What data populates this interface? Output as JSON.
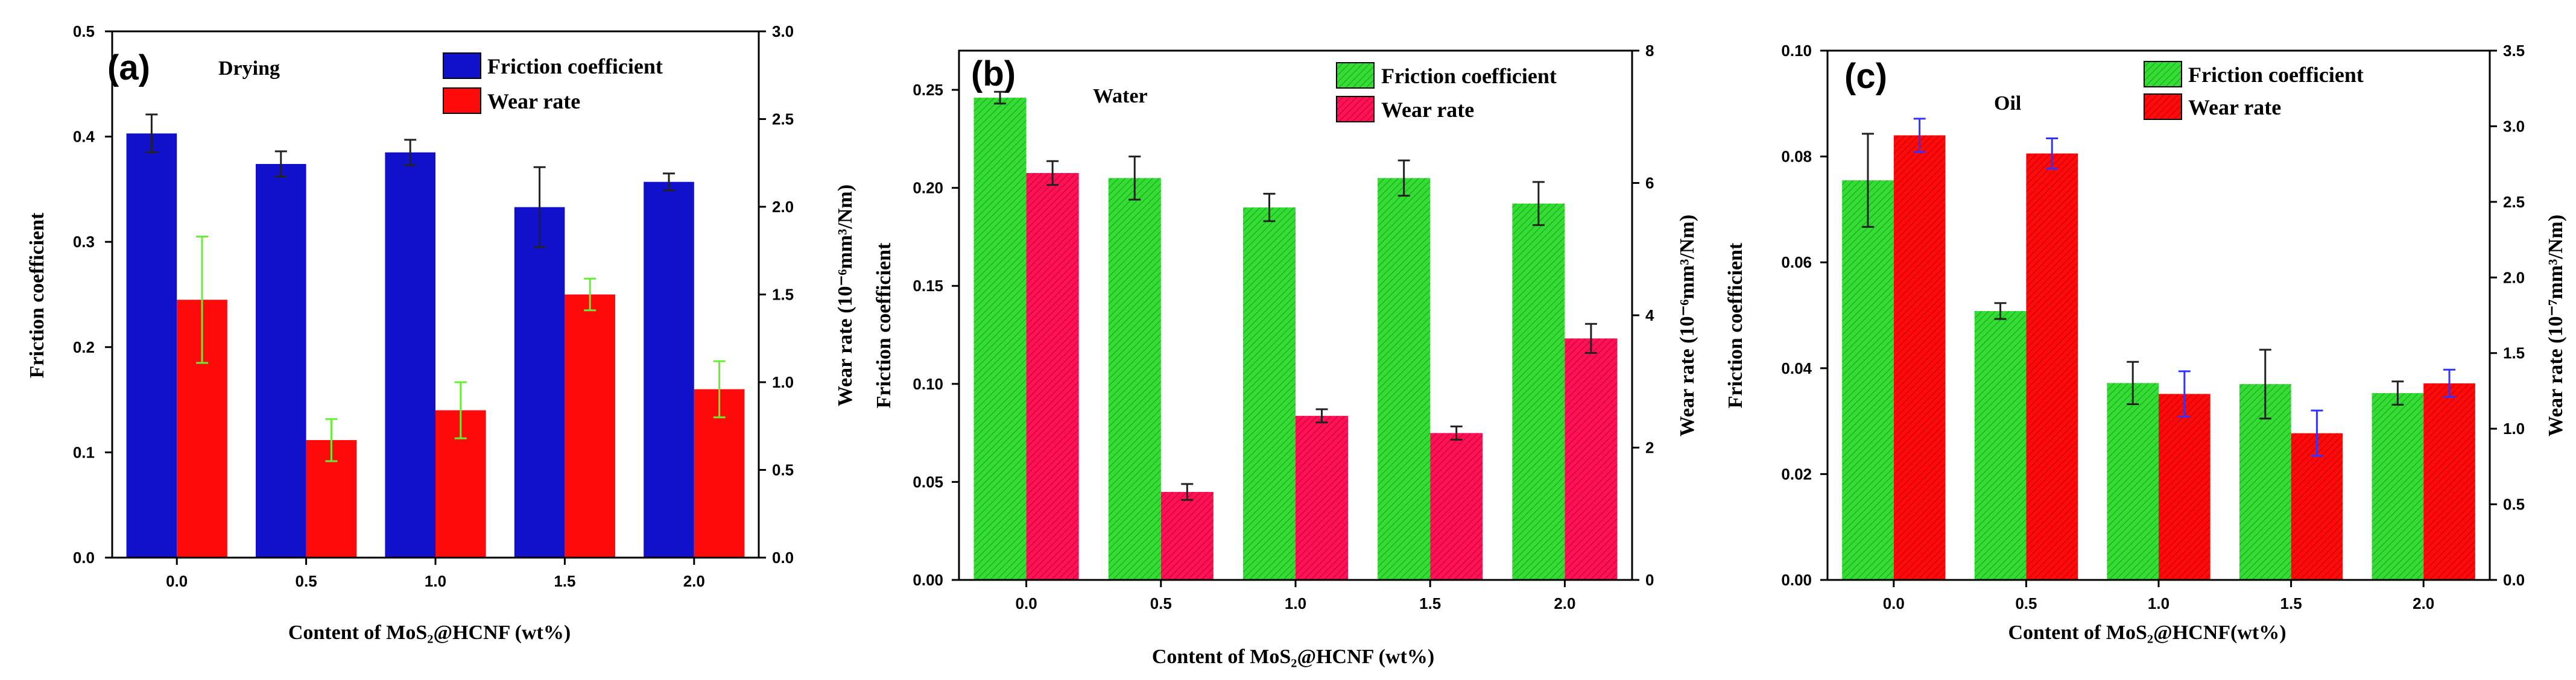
{
  "colors": {
    "blue": "#1111cc",
    "red": "#ff0a0a",
    "green": "#33dd33",
    "crimson": "#ff1155",
    "errBlack": "#222222",
    "errGreen": "#66ee33",
    "errBlue": "#3333ff"
  },
  "chart_data": [
    {
      "type": "bar",
      "panel_label": "(a)",
      "condition": "Drying",
      "categories": [
        "0.0",
        "0.5",
        "1.0",
        "1.5",
        "2.0"
      ],
      "xlabel": "Content of MoS₂@HCNF (wt%)",
      "ylabel": "Friction coefficient",
      "y2label": "Wear rate (10⁻⁶mm³/Nm)",
      "ylim": [
        0,
        0.5
      ],
      "y2lim": [
        0,
        3.0
      ],
      "yticks": [
        "0.0",
        "0.1",
        "0.2",
        "0.3",
        "0.4",
        "0.5"
      ],
      "y2ticks": [
        "0.0",
        "0.5",
        "1.0",
        "1.5",
        "2.0",
        "2.5",
        "3.0"
      ],
      "legend_position": "top-right",
      "series": [
        {
          "name": "Friction coefficient",
          "axis": "left",
          "color": "#1111cc",
          "hatched": false,
          "err_color": "#222222",
          "values": [
            0.403,
            0.374,
            0.385,
            0.333,
            0.357
          ],
          "errors": [
            0.018,
            0.012,
            0.012,
            0.038,
            0.008
          ]
        },
        {
          "name": "Wear rate",
          "axis": "right",
          "color": "#ff0a0a",
          "hatched": false,
          "err_color": "#66ee33",
          "values": [
            1.47,
            0.67,
            0.84,
            1.5,
            0.96
          ],
          "errors": [
            0.36,
            0.12,
            0.16,
            0.09,
            0.16
          ]
        }
      ]
    },
    {
      "type": "bar",
      "panel_label": "(b)",
      "condition": "Water",
      "categories": [
        "0.0",
        "0.5",
        "1.0",
        "1.5",
        "2.0"
      ],
      "xlabel": "Content of  MoS₂@HCNF (wt%)",
      "ylabel": "Friction coefficient",
      "y2label": "Wear rate (10⁻⁶mm³/Nm)",
      "ylim": [
        0,
        0.27
      ],
      "y2lim": [
        0,
        8
      ],
      "yticks": [
        "0.00",
        "0.05",
        "0.10",
        "0.15",
        "0.20",
        "0.25"
      ],
      "ytick_values": [
        0,
        0.05,
        0.1,
        0.15,
        0.2,
        0.25
      ],
      "y2ticks": [
        "0",
        "2",
        "4",
        "6",
        "8"
      ],
      "legend_position": "top-right",
      "series": [
        {
          "name": "Friction coefficient",
          "axis": "left",
          "color": "#33dd33",
          "hatched": true,
          "err_color": "#222222",
          "values": [
            0.246,
            0.205,
            0.19,
            0.205,
            0.192
          ],
          "errors": [
            0.003,
            0.011,
            0.007,
            0.009,
            0.011
          ]
        },
        {
          "name": "Wear rate",
          "axis": "right",
          "color": "#ff1155",
          "hatched": true,
          "err_color": "#222222",
          "values": [
            6.15,
            1.33,
            2.48,
            2.22,
            3.65
          ],
          "errors": [
            0.18,
            0.12,
            0.1,
            0.1,
            0.22
          ]
        }
      ]
    },
    {
      "type": "bar",
      "panel_label": "(c)",
      "condition": "Oil",
      "categories": [
        "0.0",
        "0.5",
        "1.0",
        "1.5",
        "2.0"
      ],
      "xlabel": "Content of MoS₂@HCNF(wt%)",
      "ylabel": "Friction coefficient",
      "y2label": "Wear rate (10⁻⁷mm³/Nm)",
      "ylim": [
        0,
        0.1
      ],
      "y2lim": [
        0,
        3.5
      ],
      "yticks": [
        "0.00",
        "0.02",
        "0.04",
        "0.06",
        "0.08",
        "0.10"
      ],
      "y2ticks": [
        "0.0",
        "0.5",
        "1.0",
        "1.5",
        "2.0",
        "2.5",
        "3.0",
        "3.5"
      ],
      "legend_position": "top-right",
      "series": [
        {
          "name": "Friction coefficient",
          "axis": "left",
          "color": "#33dd33",
          "hatched": true,
          "err_color": "#222222",
          "values": [
            0.0755,
            0.0508,
            0.0372,
            0.037,
            0.0353
          ],
          "errors": [
            0.0088,
            0.0015,
            0.004,
            0.0065,
            0.0022
          ]
        },
        {
          "name": "Wear rate",
          "axis": "right",
          "color": "#ff0a0a",
          "hatched": true,
          "err_color": "#3333ff",
          "values": [
            2.94,
            2.82,
            1.23,
            0.97,
            1.3
          ],
          "errors": [
            0.11,
            0.1,
            0.15,
            0.15,
            0.09
          ]
        }
      ]
    }
  ]
}
